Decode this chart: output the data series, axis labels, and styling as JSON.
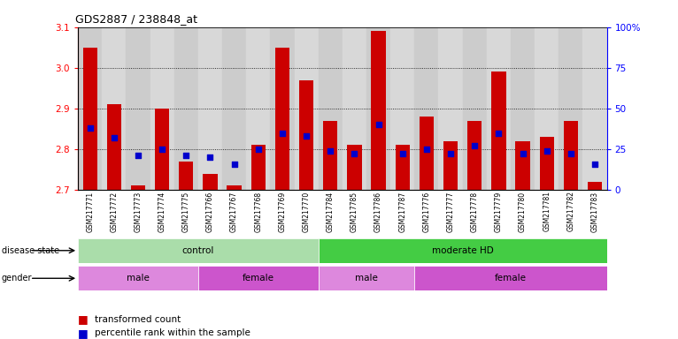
{
  "title": "GDS2887 / 238848_at",
  "samples": [
    "GSM217771",
    "GSM217772",
    "GSM217773",
    "GSM217774",
    "GSM217775",
    "GSM217766",
    "GSM217767",
    "GSM217768",
    "GSM217769",
    "GSM217770",
    "GSM217784",
    "GSM217785",
    "GSM217786",
    "GSM217787",
    "GSM217776",
    "GSM217777",
    "GSM217778",
    "GSM217779",
    "GSM217780",
    "GSM217781",
    "GSM217782",
    "GSM217783"
  ],
  "bar_values": [
    3.05,
    2.91,
    2.71,
    2.9,
    2.77,
    2.74,
    2.71,
    2.81,
    3.05,
    2.97,
    2.87,
    2.81,
    3.09,
    2.81,
    2.88,
    2.82,
    2.87,
    2.99,
    2.82,
    2.83,
    2.87,
    2.72
  ],
  "percentile_rank": [
    38,
    32,
    21,
    25,
    21,
    20,
    16,
    25,
    35,
    33,
    24,
    22,
    40,
    22,
    25,
    22,
    27,
    35,
    22,
    24,
    22,
    16
  ],
  "ylim": [
    2.7,
    3.1
  ],
  "yticks": [
    2.7,
    2.8,
    2.9,
    3.0,
    3.1
  ],
  "right_yticks": [
    0,
    25,
    50,
    75,
    100
  ],
  "right_ylabels": [
    "0",
    "25",
    "50",
    "75",
    "100%"
  ],
  "bar_color": "#cc0000",
  "percentile_color": "#0000cc",
  "disease_state_groups": [
    {
      "label": "control",
      "start": 0,
      "end": 10,
      "color": "#aaddaa"
    },
    {
      "label": "moderate HD",
      "start": 10,
      "end": 22,
      "color": "#44cc44"
    }
  ],
  "gender_groups": [
    {
      "label": "male",
      "start": 0,
      "end": 5,
      "color": "#dd88dd"
    },
    {
      "label": "female",
      "start": 5,
      "end": 10,
      "color": "#cc55cc"
    },
    {
      "label": "male",
      "start": 10,
      "end": 14,
      "color": "#dd88dd"
    },
    {
      "label": "female",
      "start": 14,
      "end": 22,
      "color": "#cc55cc"
    }
  ],
  "xtick_colors": [
    "#cccccc",
    "#d8d8d8"
  ],
  "bar_width": 0.6
}
